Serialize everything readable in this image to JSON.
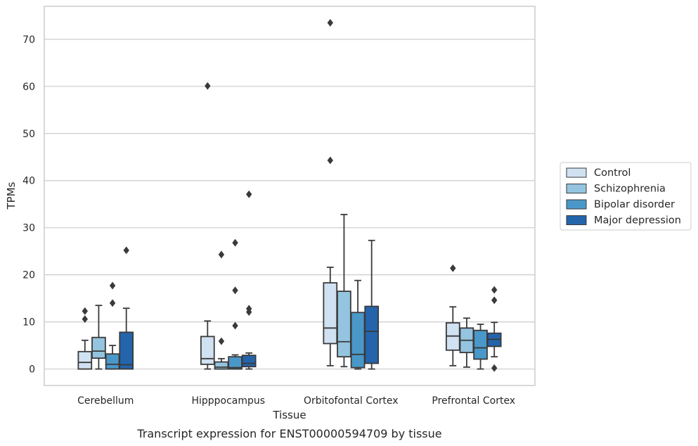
{
  "caption": "Transcript expression for ENST00000594709 by tissue",
  "chart_data": {
    "type": "box",
    "xlabel": "Tissue",
    "ylabel": "TPMs",
    "ylim": [
      -3.5,
      77
    ],
    "yticks": [
      0,
      10,
      20,
      30,
      40,
      50,
      60,
      70
    ],
    "grid": "horizontal",
    "legend_position": "right",
    "categories": [
      "Cerebellum",
      "Hipppocampus",
      "Orbitofontal Cortex",
      "Prefrontal Cortex"
    ],
    "series": [
      {
        "name": "Control",
        "color": "#d0e1f2",
        "boxes": [
          {
            "whislo": 0.0,
            "q1": 0.0,
            "med": 1.4,
            "q3": 3.7,
            "whishi": 6.1,
            "fliers": [
              10.6,
              12.3
            ]
          },
          {
            "whislo": 0.0,
            "q1": 1.0,
            "med": 2.2,
            "q3": 6.9,
            "whishi": 10.2,
            "fliers": [
              60.1
            ]
          },
          {
            "whislo": 0.7,
            "q1": 5.4,
            "med": 8.7,
            "q3": 18.3,
            "whishi": 21.6,
            "fliers": [
              44.3,
              73.5
            ]
          },
          {
            "whislo": 0.7,
            "q1": 4.0,
            "med": 7.0,
            "q3": 9.8,
            "whishi": 13.2,
            "fliers": [
              21.4
            ]
          }
        ]
      },
      {
        "name": "Schizophrenia",
        "color": "#94c4df",
        "boxes": [
          {
            "whislo": 0.0,
            "q1": 2.3,
            "med": 3.8,
            "q3": 6.7,
            "whishi": 13.5,
            "fliers": []
          },
          {
            "whislo": 0.0,
            "q1": 0.0,
            "med": 0.4,
            "q3": 1.5,
            "whishi": 2.2,
            "fliers": [
              5.9,
              24.3
            ]
          },
          {
            "whislo": 0.5,
            "q1": 2.6,
            "med": 5.8,
            "q3": 16.5,
            "whishi": 32.8,
            "fliers": []
          },
          {
            "whislo": 0.4,
            "q1": 3.5,
            "med": 6.1,
            "q3": 8.7,
            "whishi": 10.8,
            "fliers": []
          }
        ]
      },
      {
        "name": "Bipolar disorder",
        "color": "#4a98c9",
        "boxes": [
          {
            "whislo": 0.0,
            "q1": 0.0,
            "med": 1.0,
            "q3": 3.2,
            "whishi": 5.0,
            "fliers": [
              14.0,
              17.7
            ]
          },
          {
            "whislo": 0.0,
            "q1": 0.0,
            "med": 0.3,
            "q3": 2.6,
            "whishi": 3.0,
            "fliers": [
              9.2,
              16.7,
              26.8
            ]
          },
          {
            "whislo": 0.0,
            "q1": 0.3,
            "med": 3.1,
            "q3": 12.0,
            "whishi": 18.8,
            "fliers": []
          },
          {
            "whislo": 0.0,
            "q1": 2.1,
            "med": 4.5,
            "q3": 8.2,
            "whishi": 9.5,
            "fliers": []
          }
        ]
      },
      {
        "name": "Major depression",
        "color": "#2464ab",
        "boxes": [
          {
            "whislo": 0.0,
            "q1": 0.0,
            "med": 0.9,
            "q3": 7.8,
            "whishi": 12.9,
            "fliers": [
              25.2
            ]
          },
          {
            "whislo": 0.0,
            "q1": 0.5,
            "med": 1.2,
            "q3": 2.9,
            "whishi": 3.4,
            "fliers": [
              12.1,
              12.8,
              37.1
            ]
          },
          {
            "whislo": 0.0,
            "q1": 1.2,
            "med": 8.0,
            "q3": 13.3,
            "whishi": 27.3,
            "fliers": []
          },
          {
            "whislo": 2.6,
            "q1": 4.8,
            "med": 6.3,
            "q3": 7.6,
            "whishi": 9.9,
            "fliers": [
              0.2,
              14.6,
              16.8
            ]
          }
        ]
      }
    ]
  }
}
